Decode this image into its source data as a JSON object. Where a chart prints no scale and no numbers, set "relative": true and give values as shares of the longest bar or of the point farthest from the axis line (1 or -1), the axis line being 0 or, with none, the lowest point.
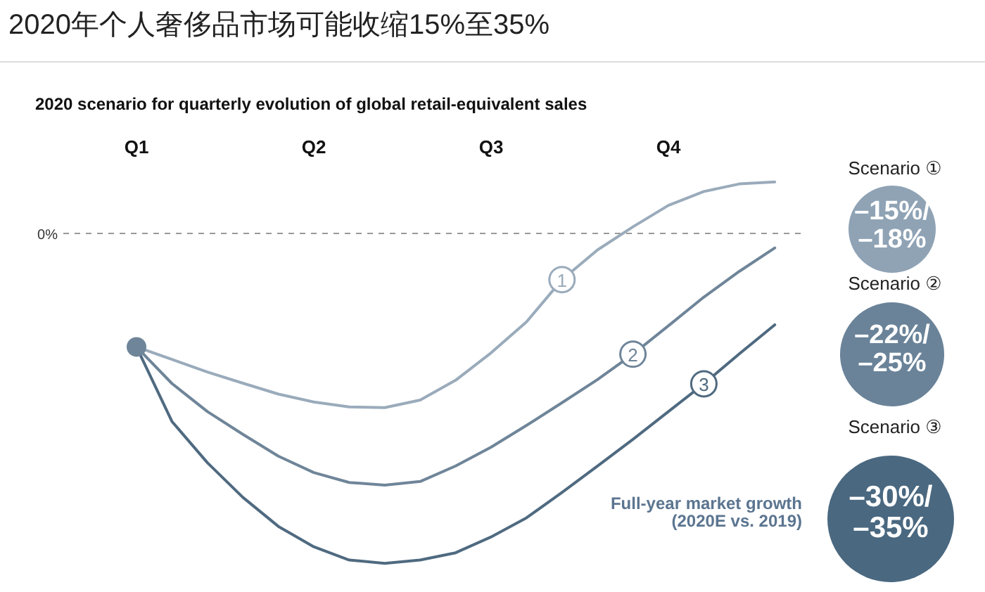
{
  "chart_data": {
    "type": "line",
    "title": "2020年个人奢侈品市场可能收缩15%至35%",
    "subtitle": "2020 scenario for quarterly evolution of global retail-equivalent sales",
    "relative": true,
    "legend": false,
    "grid": false,
    "marker": "none",
    "line_style": "solid",
    "categories": [
      "Q1",
      null,
      null,
      null,
      null,
      "Q2",
      null,
      null,
      null,
      null,
      "Q3",
      null,
      null,
      null,
      null,
      "Q4",
      null,
      null,
      null
    ],
    "ref_lines": [
      {
        "axis": "y",
        "value": 0,
        "label": "0%",
        "color": "#999999",
        "line_style": "dashed"
      }
    ],
    "series": [
      {
        "name": "1",
        "color": "#9aabbb",
        "values": [
          -0.344,
          -0.382,
          -0.42,
          -0.454,
          -0.487,
          -0.511,
          -0.526,
          -0.528,
          -0.505,
          -0.445,
          -0.362,
          -0.268,
          -0.14,
          -0.05,
          0.02,
          0.085,
          0.127,
          0.15,
          0.156
        ]
      },
      {
        "name": "2",
        "color": "#6f8599",
        "values": [
          -0.344,
          -0.455,
          -0.54,
          -0.609,
          -0.675,
          -0.725,
          -0.755,
          -0.763,
          -0.752,
          -0.705,
          -0.648,
          -0.582,
          -0.513,
          -0.443,
          -0.366,
          -0.28,
          -0.193,
          -0.115,
          -0.044
        ]
      },
      {
        "name": "3",
        "color": "#4f6a80",
        "values": [
          -0.344,
          -0.57,
          -0.695,
          -0.8,
          -0.888,
          -0.95,
          -0.99,
          -1.0,
          -0.99,
          -0.968,
          -0.92,
          -0.862,
          -0.785,
          -0.705,
          -0.624,
          -0.54,
          -0.456,
          -0.365,
          -0.277
        ]
      },
      {
        "type": "scatter",
        "marker": "circle",
        "color": "#6f8599",
        "values": [
          -0.344,
          null,
          null,
          null,
          null,
          null,
          null,
          null,
          null,
          null,
          null,
          null,
          null,
          null,
          null,
          null,
          null,
          null,
          null
        ]
      }
    ],
    "annotations": [
      "Scenario ①",
      "–15%/\n–18%",
      "Scenario ②",
      "–22%/\n–25%",
      "Scenario ③",
      "–30%/\n–35%",
      "Full-year market growth\n(2020E vs. 2019)"
    ]
  }
}
